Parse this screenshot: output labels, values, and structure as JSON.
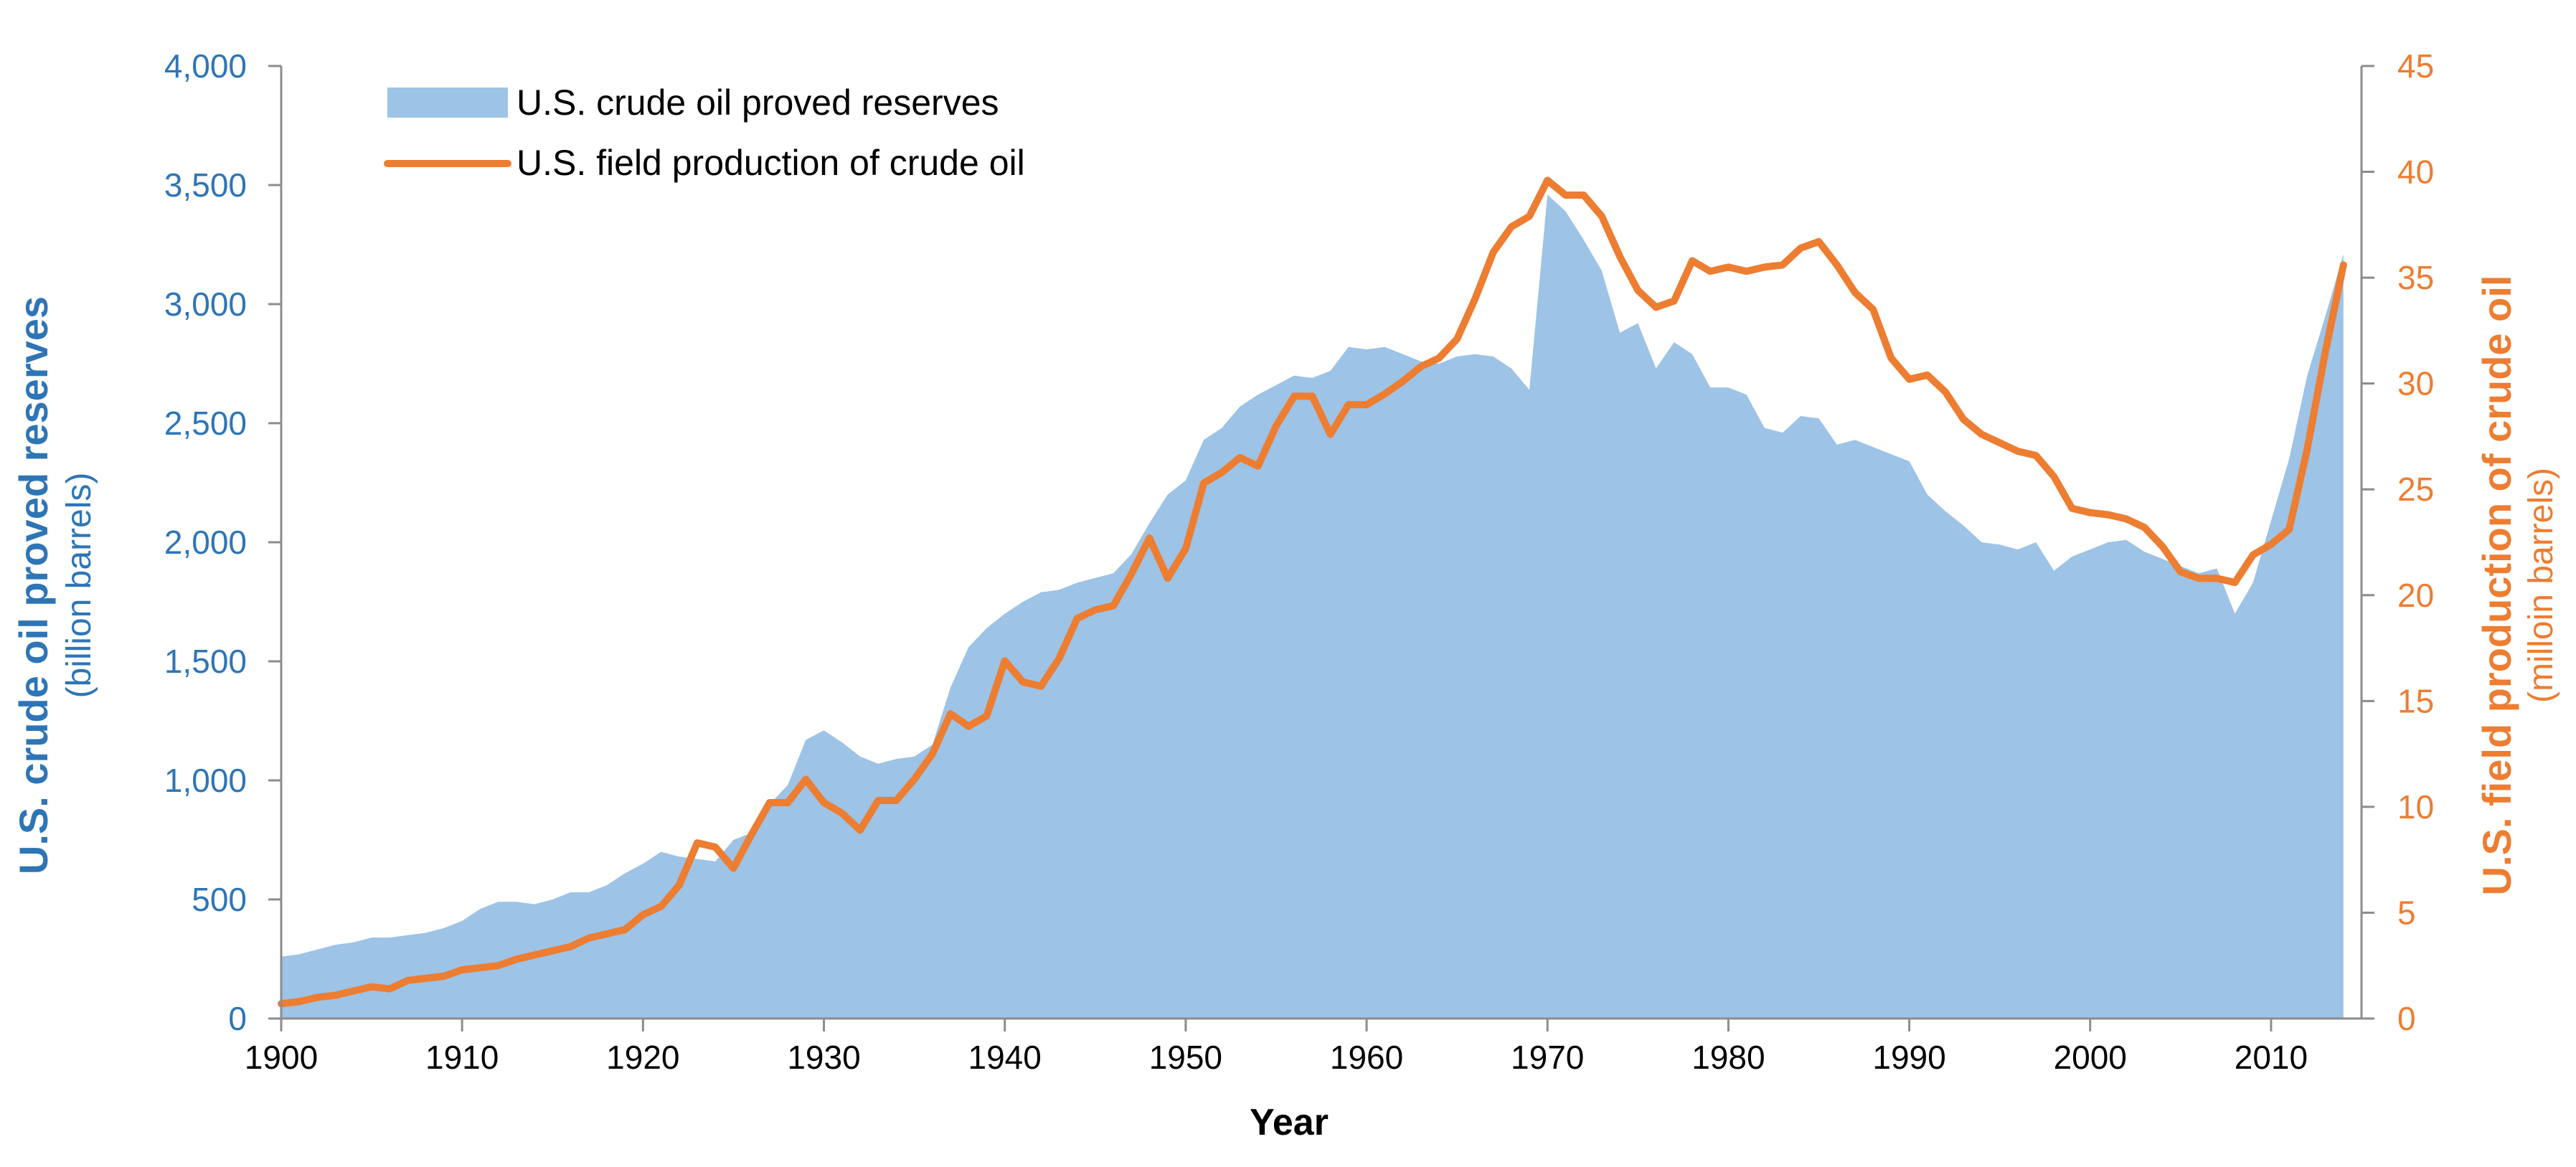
{
  "colors": {
    "reserves_fill": "#9dc3e6",
    "production_line": "#ed7d31",
    "left_axis": "#2e75b6",
    "right_axis": "#ed7d31",
    "x_axis": "#000000",
    "axis_line": "#8c8c8c"
  },
  "chart_data": {
    "type": "area+line",
    "xlabel": "Year",
    "x_range": [
      1900,
      2015
    ],
    "x_ticks": [
      1900,
      1910,
      1920,
      1930,
      1940,
      1950,
      1960,
      1970,
      1980,
      1990,
      2000,
      2010
    ],
    "x_tick_labels": [
      "1900",
      "1910",
      "1920",
      "1930",
      "1940",
      "1950",
      "1960",
      "1970",
      "1980",
      "1990",
      "2000",
      "2010"
    ],
    "left_axis": {
      "label": "U.S. crude oil proved reserves",
      "sublabel": "(billion barrels)",
      "range": [
        0,
        4000
      ],
      "ticks": [
        0,
        500,
        1000,
        1500,
        2000,
        2500,
        3000,
        3500,
        4000
      ],
      "tick_labels": [
        "0",
        "500",
        "1,000",
        "1,500",
        "2,000",
        "2,500",
        "3,000",
        "3,500",
        "4,000"
      ]
    },
    "right_axis": {
      "label": "U.S. field production of crude oil",
      "sublabel": "(milloin barrels)",
      "range": [
        0,
        45
      ],
      "ticks": [
        0,
        5,
        10,
        15,
        20,
        25,
        30,
        35,
        40,
        45
      ],
      "tick_labels": [
        "0",
        "5",
        "10",
        "15",
        "20",
        "25",
        "30",
        "35",
        "40",
        "45"
      ]
    },
    "legend": {
      "placement": "top-left",
      "entries": [
        "U.S. crude oil proved reserves",
        "U.S. field production of crude oil"
      ]
    },
    "series": [
      {
        "name": "U.S. crude oil proved reserves",
        "axis": "left",
        "kind": "area",
        "x": [
          1900,
          1901,
          1902,
          1903,
          1904,
          1905,
          1906,
          1907,
          1908,
          1909,
          1910,
          1911,
          1912,
          1913,
          1914,
          1915,
          1916,
          1917,
          1918,
          1919,
          1920,
          1921,
          1922,
          1923,
          1924,
          1925,
          1926,
          1927,
          1928,
          1929,
          1930,
          1931,
          1932,
          1933,
          1934,
          1935,
          1936,
          1937,
          1938,
          1939,
          1940,
          1941,
          1942,
          1943,
          1944,
          1945,
          1946,
          1947,
          1948,
          1949,
          1950,
          1951,
          1952,
          1953,
          1954,
          1955,
          1956,
          1957,
          1958,
          1959,
          1960,
          1961,
          1962,
          1963,
          1964,
          1965,
          1966,
          1967,
          1968,
          1969,
          1970,
          1971,
          1972,
          1973,
          1974,
          1975,
          1976,
          1977,
          1978,
          1979,
          1980,
          1981,
          1982,
          1983,
          1984,
          1985,
          1986,
          1987,
          1988,
          1989,
          1990,
          1991,
          1992,
          1993,
          1994,
          1995,
          1996,
          1997,
          1998,
          1999,
          2000,
          2001,
          2002,
          2003,
          2004,
          2005,
          2006,
          2007,
          2008,
          2009,
          2010,
          2011,
          2012,
          2013,
          2014
        ],
        "values": [
          260,
          270,
          290,
          310,
          320,
          340,
          340,
          350,
          360,
          380,
          410,
          460,
          490,
          490,
          480,
          500,
          530,
          530,
          560,
          610,
          650,
          700,
          680,
          670,
          660,
          750,
          780,
          900,
          980,
          1170,
          1210,
          1160,
          1100,
          1070,
          1090,
          1100,
          1150,
          1390,
          1560,
          1640,
          1700,
          1750,
          1790,
          1800,
          1830,
          1850,
          1870,
          1950,
          2080,
          2200,
          2260,
          2430,
          2480,
          2570,
          2620,
          2660,
          2700,
          2690,
          2720,
          2820,
          2810,
          2820,
          2790,
          2760,
          2750,
          2780,
          2790,
          2780,
          2730,
          2640,
          3460,
          3390,
          3270,
          3140,
          2880,
          2920,
          2730,
          2840,
          2790,
          2650,
          2650,
          2620,
          2480,
          2460,
          2530,
          2520,
          2410,
          2430,
          2400,
          2370,
          2340,
          2200,
          2130,
          2070,
          2000,
          1990,
          1970,
          2000,
          1880,
          1940,
          1970,
          2000,
          2010,
          1960,
          1930,
          1900,
          1870,
          1890,
          1700,
          1830,
          2090,
          2350,
          2700,
          2950,
          3210
        ]
      },
      {
        "name": "U.S. field production of crude oil",
        "axis": "right",
        "kind": "line",
        "x": [
          1900,
          1901,
          1902,
          1903,
          1904,
          1905,
          1906,
          1907,
          1908,
          1909,
          1910,
          1911,
          1912,
          1913,
          1914,
          1915,
          1916,
          1917,
          1918,
          1919,
          1920,
          1921,
          1922,
          1923,
          1924,
          1925,
          1926,
          1927,
          1928,
          1929,
          1930,
          1931,
          1932,
          1933,
          1934,
          1935,
          1936,
          1937,
          1938,
          1939,
          1940,
          1941,
          1942,
          1943,
          1944,
          1945,
          1946,
          1947,
          1948,
          1949,
          1950,
          1951,
          1952,
          1953,
          1954,
          1955,
          1956,
          1957,
          1958,
          1959,
          1960,
          1961,
          1962,
          1963,
          1964,
          1965,
          1966,
          1967,
          1968,
          1969,
          1970,
          1971,
          1972,
          1973,
          1974,
          1975,
          1976,
          1977,
          1978,
          1979,
          1980,
          1981,
          1982,
          1983,
          1984,
          1985,
          1986,
          1987,
          1988,
          1989,
          1990,
          1991,
          1992,
          1993,
          1994,
          1995,
          1996,
          1997,
          1998,
          1999,
          2000,
          2001,
          2002,
          2003,
          2004,
          2005,
          2006,
          2007,
          2008,
          2009,
          2010,
          2011,
          2012,
          2013,
          2014
        ],
        "values": [
          0.7,
          0.8,
          1.0,
          1.1,
          1.3,
          1.5,
          1.4,
          1.8,
          1.9,
          2.0,
          2.3,
          2.4,
          2.5,
          2.8,
          3.0,
          3.2,
          3.4,
          3.8,
          4.0,
          4.2,
          4.9,
          5.3,
          6.3,
          8.3,
          8.1,
          7.1,
          8.7,
          10.2,
          10.2,
          11.3,
          10.2,
          9.7,
          8.9,
          10.3,
          10.3,
          11.3,
          12.5,
          14.4,
          13.8,
          14.3,
          16.9,
          15.9,
          15.7,
          17.0,
          18.9,
          19.3,
          19.5,
          21.0,
          22.7,
          20.8,
          22.2,
          25.3,
          25.8,
          26.5,
          26.1,
          28.0,
          29.4,
          29.4,
          27.6,
          29.0,
          29.0,
          29.5,
          30.1,
          30.8,
          31.2,
          32.1,
          34.0,
          36.2,
          37.4,
          37.9,
          39.6,
          38.9,
          38.9,
          37.9,
          36.0,
          34.4,
          33.6,
          33.9,
          35.8,
          35.3,
          35.5,
          35.3,
          35.5,
          35.6,
          36.4,
          36.7,
          35.6,
          34.3,
          33.5,
          31.2,
          30.2,
          30.4,
          29.6,
          28.3,
          27.6,
          27.2,
          26.8,
          26.6,
          25.6,
          24.1,
          23.9,
          23.8,
          23.6,
          23.2,
          22.3,
          21.1,
          20.8,
          20.8,
          20.6,
          21.9,
          22.4,
          23.1,
          26.9,
          31.5,
          35.6
        ]
      }
    ]
  }
}
